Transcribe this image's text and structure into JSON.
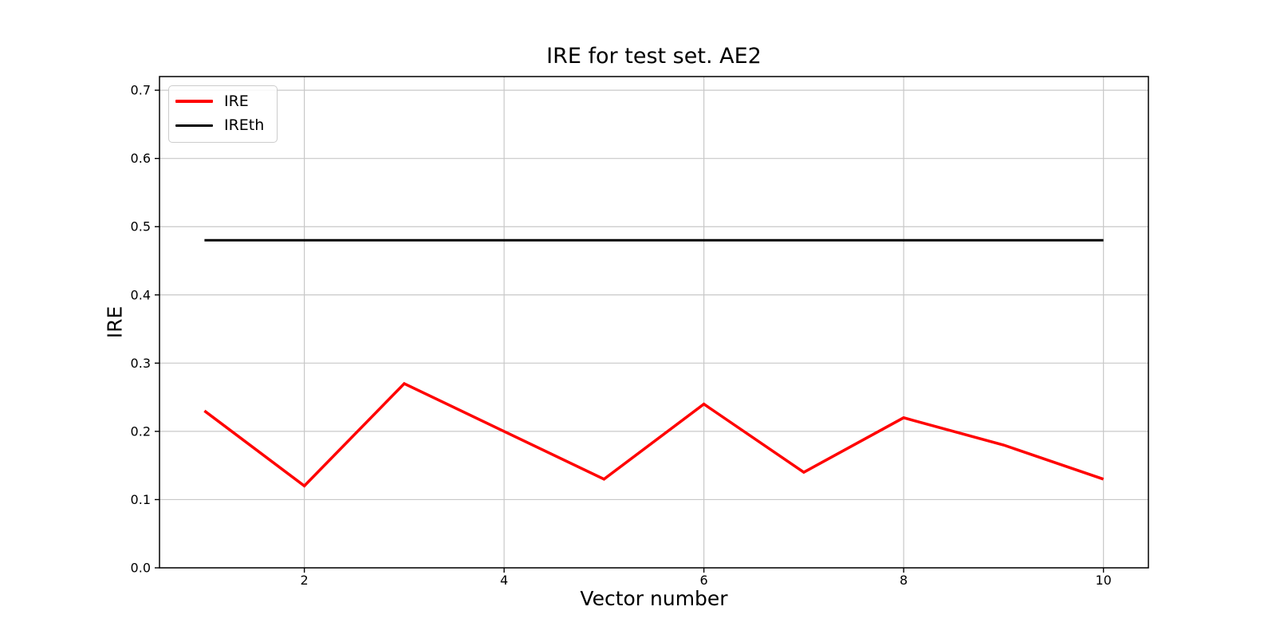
{
  "figure": {
    "title": "IRE for test set. AE2",
    "xlabel": "Vector number",
    "ylabel": "IRE",
    "background": "#ffffff"
  },
  "legend": {
    "position": "upper-left",
    "items": [
      {
        "label": "IRE",
        "color": "#ff0000",
        "line_width": 3.5
      },
      {
        "label": "IREth",
        "color": "#000000",
        "line_width": 3
      }
    ]
  },
  "chart_data": {
    "type": "line",
    "title": "IRE for test set. AE2",
    "xlabel": "Vector number",
    "ylabel": "IRE",
    "x": [
      1,
      2,
      3,
      4,
      5,
      6,
      7,
      8,
      9,
      10
    ],
    "series": [
      {
        "name": "IRE",
        "color": "#ff0000",
        "line_width": 3.5,
        "values": [
          0.23,
          0.12,
          0.27,
          0.2,
          0.13,
          0.24,
          0.14,
          0.22,
          0.18,
          0.13
        ]
      },
      {
        "name": "IREth",
        "color": "#000000",
        "line_width": 3,
        "values": [
          0.48,
          0.48,
          0.48,
          0.48,
          0.48,
          0.48,
          0.48,
          0.48,
          0.48,
          0.48
        ]
      }
    ],
    "xlim": [
      0.55,
      10.45
    ],
    "ylim": [
      0.0,
      0.72
    ],
    "xticks": [
      2,
      4,
      6,
      8,
      10
    ],
    "yticks": [
      0.0,
      0.1,
      0.2,
      0.3,
      0.4,
      0.5,
      0.6,
      0.7
    ],
    "grid": true,
    "grid_color": "#c8c8c8",
    "axis_color": "#000000",
    "tick_color": "#000000",
    "legend_position": "upper left"
  }
}
